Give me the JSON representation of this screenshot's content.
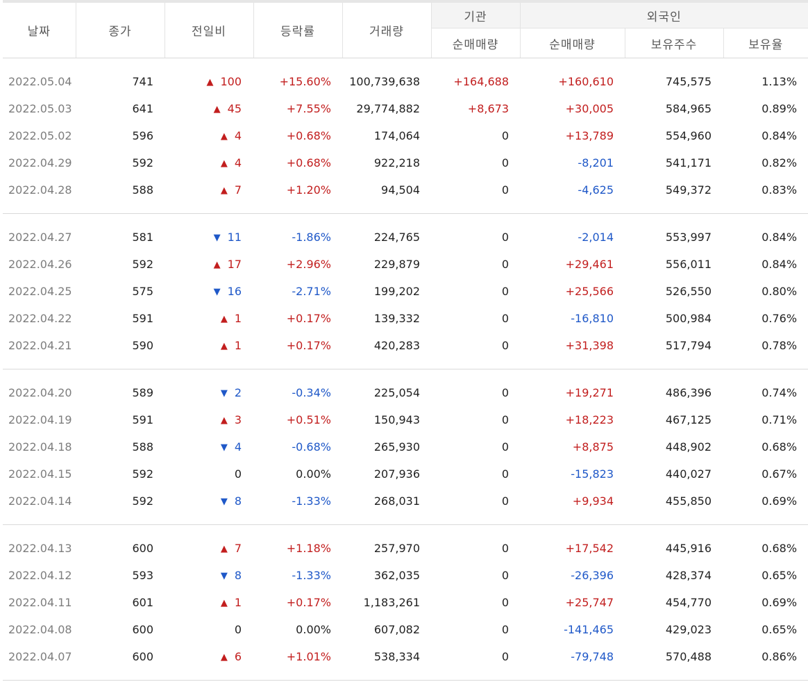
{
  "headers": {
    "date": "날짜",
    "close": "종가",
    "change": "전일비",
    "rate": "등락률",
    "volume": "거래량",
    "institution": "기관",
    "inst_net": "순매매량",
    "foreign": "외국인",
    "foreign_net": "순매매량",
    "foreign_holdings": "보유주수",
    "foreign_ratio": "보유율"
  },
  "colors": {
    "up": "#c21e1e",
    "down": "#1f58c8",
    "date": "#7d7d7d"
  },
  "rows": [
    {
      "date": "2022.05.04",
      "close": "741",
      "dir": "up",
      "change": "100",
      "rate": "+15.60%",
      "volume": "100,739,638",
      "inst": "+164,688",
      "inst_dir": "up",
      "fnet": "+160,610",
      "fnet_dir": "up",
      "fhold": "745,575",
      "fratio": "1.13%"
    },
    {
      "date": "2022.05.03",
      "close": "641",
      "dir": "up",
      "change": "45",
      "rate": "+7.55%",
      "volume": "29,774,882",
      "inst": "+8,673",
      "inst_dir": "up",
      "fnet": "+30,005",
      "fnet_dir": "up",
      "fhold": "584,965",
      "fratio": "0.89%"
    },
    {
      "date": "2022.05.02",
      "close": "596",
      "dir": "up",
      "change": "4",
      "rate": "+0.68%",
      "volume": "174,064",
      "inst": "0",
      "inst_dir": "flat",
      "fnet": "+13,789",
      "fnet_dir": "up",
      "fhold": "554,960",
      "fratio": "0.84%"
    },
    {
      "date": "2022.04.29",
      "close": "592",
      "dir": "up",
      "change": "4",
      "rate": "+0.68%",
      "volume": "922,218",
      "inst": "0",
      "inst_dir": "flat",
      "fnet": "-8,201",
      "fnet_dir": "down",
      "fhold": "541,171",
      "fratio": "0.82%"
    },
    {
      "date": "2022.04.28",
      "close": "588",
      "dir": "up",
      "change": "7",
      "rate": "+1.20%",
      "volume": "94,504",
      "inst": "0",
      "inst_dir": "flat",
      "fnet": "-4,625",
      "fnet_dir": "down",
      "fhold": "549,372",
      "fratio": "0.83%"
    },
    {
      "date": "2022.04.27",
      "close": "581",
      "dir": "down",
      "change": "11",
      "rate": "-1.86%",
      "volume": "224,765",
      "inst": "0",
      "inst_dir": "flat",
      "fnet": "-2,014",
      "fnet_dir": "down",
      "fhold": "553,997",
      "fratio": "0.84%"
    },
    {
      "date": "2022.04.26",
      "close": "592",
      "dir": "up",
      "change": "17",
      "rate": "+2.96%",
      "volume": "229,879",
      "inst": "0",
      "inst_dir": "flat",
      "fnet": "+29,461",
      "fnet_dir": "up",
      "fhold": "556,011",
      "fratio": "0.84%"
    },
    {
      "date": "2022.04.25",
      "close": "575",
      "dir": "down",
      "change": "16",
      "rate": "-2.71%",
      "volume": "199,202",
      "inst": "0",
      "inst_dir": "flat",
      "fnet": "+25,566",
      "fnet_dir": "up",
      "fhold": "526,550",
      "fratio": "0.80%"
    },
    {
      "date": "2022.04.22",
      "close": "591",
      "dir": "up",
      "change": "1",
      "rate": "+0.17%",
      "volume": "139,332",
      "inst": "0",
      "inst_dir": "flat",
      "fnet": "-16,810",
      "fnet_dir": "down",
      "fhold": "500,984",
      "fratio": "0.76%"
    },
    {
      "date": "2022.04.21",
      "close": "590",
      "dir": "up",
      "change": "1",
      "rate": "+0.17%",
      "volume": "420,283",
      "inst": "0",
      "inst_dir": "flat",
      "fnet": "+31,398",
      "fnet_dir": "up",
      "fhold": "517,794",
      "fratio": "0.78%"
    },
    {
      "date": "2022.04.20",
      "close": "589",
      "dir": "down",
      "change": "2",
      "rate": "-0.34%",
      "volume": "225,054",
      "inst": "0",
      "inst_dir": "flat",
      "fnet": "+19,271",
      "fnet_dir": "up",
      "fhold": "486,396",
      "fratio": "0.74%"
    },
    {
      "date": "2022.04.19",
      "close": "591",
      "dir": "up",
      "change": "3",
      "rate": "+0.51%",
      "volume": "150,943",
      "inst": "0",
      "inst_dir": "flat",
      "fnet": "+18,223",
      "fnet_dir": "up",
      "fhold": "467,125",
      "fratio": "0.71%"
    },
    {
      "date": "2022.04.18",
      "close": "588",
      "dir": "down",
      "change": "4",
      "rate": "-0.68%",
      "volume": "265,930",
      "inst": "0",
      "inst_dir": "flat",
      "fnet": "+8,875",
      "fnet_dir": "up",
      "fhold": "448,902",
      "fratio": "0.68%"
    },
    {
      "date": "2022.04.15",
      "close": "592",
      "dir": "flat",
      "change": "0",
      "rate": "0.00%",
      "volume": "207,936",
      "inst": "0",
      "inst_dir": "flat",
      "fnet": "-15,823",
      "fnet_dir": "down",
      "fhold": "440,027",
      "fratio": "0.67%"
    },
    {
      "date": "2022.04.14",
      "close": "592",
      "dir": "down",
      "change": "8",
      "rate": "-1.33%",
      "volume": "268,031",
      "inst": "0",
      "inst_dir": "flat",
      "fnet": "+9,934",
      "fnet_dir": "up",
      "fhold": "455,850",
      "fratio": "0.69%"
    },
    {
      "date": "2022.04.13",
      "close": "600",
      "dir": "up",
      "change": "7",
      "rate": "+1.18%",
      "volume": "257,970",
      "inst": "0",
      "inst_dir": "flat",
      "fnet": "+17,542",
      "fnet_dir": "up",
      "fhold": "445,916",
      "fratio": "0.68%"
    },
    {
      "date": "2022.04.12",
      "close": "593",
      "dir": "down",
      "change": "8",
      "rate": "-1.33%",
      "volume": "362,035",
      "inst": "0",
      "inst_dir": "flat",
      "fnet": "-26,396",
      "fnet_dir": "down",
      "fhold": "428,374",
      "fratio": "0.65%"
    },
    {
      "date": "2022.04.11",
      "close": "601",
      "dir": "up",
      "change": "1",
      "rate": "+0.17%",
      "volume": "1,183,261",
      "inst": "0",
      "inst_dir": "flat",
      "fnet": "+25,747",
      "fnet_dir": "up",
      "fhold": "454,770",
      "fratio": "0.69%"
    },
    {
      "date": "2022.04.08",
      "close": "600",
      "dir": "flat",
      "change": "0",
      "rate": "0.00%",
      "volume": "607,082",
      "inst": "0",
      "inst_dir": "flat",
      "fnet": "-141,465",
      "fnet_dir": "down",
      "fhold": "429,023",
      "fratio": "0.65%"
    },
    {
      "date": "2022.04.07",
      "close": "600",
      "dir": "up",
      "change": "6",
      "rate": "+1.01%",
      "volume": "538,334",
      "inst": "0",
      "inst_dir": "flat",
      "fnet": "-79,748",
      "fnet_dir": "down",
      "fhold": "570,488",
      "fratio": "0.86%"
    }
  ],
  "icons": {
    "up": "triangle-up-icon",
    "down": "triangle-down-icon"
  }
}
